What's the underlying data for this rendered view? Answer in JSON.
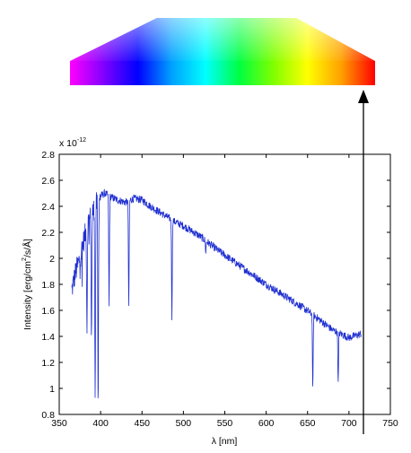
{
  "colors": {
    "spectrum_line": "#1f2fd0",
    "axis": "#000000",
    "background": "#ffffff",
    "rainbow": [
      "#ff00ff",
      "#8000ff",
      "#0000ff",
      "#00a0ff",
      "#00ffff",
      "#00ff40",
      "#80ff00",
      "#ffff00",
      "#ffa000",
      "#ff0000"
    ]
  },
  "chart_data": {
    "type": "line",
    "title": "",
    "xlabel": "λ [nm]",
    "ylabel_parts": {
      "pre": "Intensity [erg/cm",
      "sup": "2",
      "post": "/s/Å]"
    },
    "y_exponent": {
      "base": "x 10",
      "power": "-12"
    },
    "xlim": [
      350,
      750
    ],
    "ylim": [
      0.8,
      2.8
    ],
    "xticks": [
      "350",
      "400",
      "450",
      "500",
      "550",
      "600",
      "650",
      "700",
      "750"
    ],
    "yticks": [
      "0.8",
      "1",
      "1.2",
      "1.4",
      "1.6",
      "1.8",
      "2",
      "2.2",
      "2.4",
      "2.6",
      "2.8"
    ],
    "grid": false,
    "spectrum_range_nm": [
      365,
      715
    ],
    "series": [
      {
        "continuum": [
          [
            365,
            1.75
          ],
          [
            370,
            1.9
          ],
          [
            375,
            2.0
          ],
          [
            380,
            2.15
          ],
          [
            385,
            2.28
          ],
          [
            390,
            2.35
          ],
          [
            395,
            2.42
          ],
          [
            400,
            2.48
          ],
          [
            405,
            2.5
          ],
          [
            410,
            2.48
          ],
          [
            420,
            2.45
          ],
          [
            430,
            2.43
          ],
          [
            440,
            2.46
          ],
          [
            450,
            2.45
          ],
          [
            460,
            2.4
          ],
          [
            470,
            2.36
          ],
          [
            480,
            2.32
          ],
          [
            490,
            2.28
          ],
          [
            500,
            2.25
          ],
          [
            520,
            2.17
          ],
          [
            540,
            2.07
          ],
          [
            560,
            1.98
          ],
          [
            580,
            1.89
          ],
          [
            600,
            1.8
          ],
          [
            620,
            1.72
          ],
          [
            640,
            1.64
          ],
          [
            660,
            1.55
          ],
          [
            680,
            1.45
          ],
          [
            700,
            1.39
          ],
          [
            715,
            1.42
          ]
        ],
        "absorption_lines": [
          [
            383.5,
            1.45
          ],
          [
            388.9,
            1.35
          ],
          [
            397.0,
            0.82
          ],
          [
            393.4,
            0.88
          ],
          [
            410.2,
            1.62
          ],
          [
            434.0,
            1.6
          ],
          [
            486.1,
            1.55
          ],
          [
            656.3,
            0.97
          ],
          [
            687.0,
            1.03
          ],
          [
            527.0,
            2.05
          ]
        ]
      }
    ]
  }
}
